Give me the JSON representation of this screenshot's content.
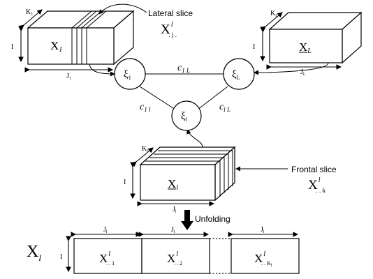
{
  "cube_x1": {
    "label": "X",
    "label_sub": "1",
    "dim_i": "I",
    "dim_j": "J",
    "dim_j_sub": "1",
    "dim_k": "K",
    "dim_k_sub": "1"
  },
  "cube_xl_top": {
    "label": "X",
    "label_sub": "L",
    "dim_i": "I",
    "dim_j": "J",
    "dim_j_sub": "L",
    "dim_k": "K",
    "dim_k_sub": "L"
  },
  "cube_xl_center": {
    "label": "X",
    "label_sub": "l",
    "dim_i": "I",
    "dim_j": "J",
    "dim_j_sub": "l",
    "dim_k": "K",
    "dim_k_sub": "l"
  },
  "lateral_slice": {
    "title": "Lateral slice",
    "symbol": "X",
    "symbol_sup": "l",
    "symbol_sub": ". j ."
  },
  "frontal_slice": {
    "title": "Frontal slice",
    "symbol": "X",
    "symbol_sup": "l",
    "symbol_sub": ". . k"
  },
  "nodes": {
    "xi_1": {
      "symbol": "ξ",
      "sub": "1"
    },
    "xi_l": {
      "symbol": "ξ",
      "sub": "l"
    },
    "xi_L": {
      "symbol": "ξ",
      "sub": "L"
    }
  },
  "edges": {
    "c_1L": {
      "symbol": "c",
      "sub": "1 L"
    },
    "c_1l": {
      "symbol": "c",
      "sub": "1 l"
    },
    "c_lL": {
      "symbol": "c",
      "sub": "l L"
    }
  },
  "unfolding": {
    "arrow_label": "Unfolding",
    "matrix_label": "X",
    "matrix_label_sub": "l",
    "dim_i": "I",
    "blocks": [
      {
        "top_label": "J",
        "top_sub": "l",
        "symbol": "X",
        "sup": "l",
        "sub": ". . 1"
      },
      {
        "top_label": "J",
        "top_sub": "l",
        "symbol": "X",
        "sup": "l",
        "sub": ". . 2"
      },
      {
        "top_label": "J",
        "top_sub": "l",
        "symbol": "X",
        "sup": "l",
        "sub": ". . K",
        "sub2": "l"
      }
    ]
  }
}
